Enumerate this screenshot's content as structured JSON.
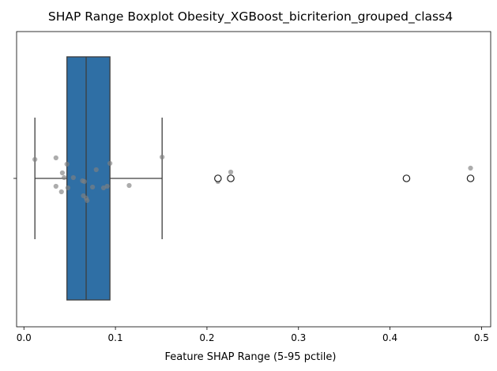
{
  "chart_data": {
    "type": "boxplot",
    "title": "SHAP Range Boxplot Obesity_XGBoost_bicriterion_grouped_class4",
    "xlabel": "Feature SHAP Range (5-95 pctile)",
    "ylabel": "",
    "orientation": "horizontal",
    "xlim": [
      -0.008,
      0.51
    ],
    "xticks": [
      0.0,
      0.1,
      0.2,
      0.3,
      0.4,
      0.5
    ],
    "xtick_labels": [
      "0.0",
      "0.1",
      "0.2",
      "0.3",
      "0.4",
      "0.5"
    ],
    "box": {
      "q1": 0.047,
      "median": 0.068,
      "q3": 0.094,
      "whisker_low": 0.012,
      "whisker_high": 0.151,
      "fill_color": "#2f6fa5",
      "edge_color": "#3d3d3d"
    },
    "outliers": [
      0.212,
      0.226,
      0.418,
      0.488
    ],
    "points": [
      {
        "x": 0.012,
        "jitter": -0.24
      },
      {
        "x": 0.035,
        "jitter": -0.26
      },
      {
        "x": 0.047,
        "jitter": -0.18
      },
      {
        "x": 0.042,
        "jitter": -0.07
      },
      {
        "x": 0.044,
        "jitter": -0.01
      },
      {
        "x": 0.054,
        "jitter": -0.01
      },
      {
        "x": 0.035,
        "jitter": 0.1
      },
      {
        "x": 0.048,
        "jitter": 0.12
      },
      {
        "x": 0.041,
        "jitter": 0.17
      },
      {
        "x": 0.064,
        "jitter": 0.03
      },
      {
        "x": 0.066,
        "jitter": 0.04
      },
      {
        "x": 0.075,
        "jitter": 0.11
      },
      {
        "x": 0.079,
        "jitter": -0.11
      },
      {
        "x": 0.094,
        "jitter": -0.19
      },
      {
        "x": 0.087,
        "jitter": 0.12
      },
      {
        "x": 0.091,
        "jitter": 0.1
      },
      {
        "x": 0.065,
        "jitter": 0.22
      },
      {
        "x": 0.068,
        "jitter": 0.25
      },
      {
        "x": 0.069,
        "jitter": 0.28
      },
      {
        "x": 0.115,
        "jitter": 0.09
      },
      {
        "x": 0.151,
        "jitter": -0.27
      },
      {
        "x": 0.212,
        "jitter": 0.04
      },
      {
        "x": 0.226,
        "jitter": -0.08
      },
      {
        "x": 0.418,
        "jitter": 0.0
      },
      {
        "x": 0.488,
        "jitter": -0.13
      }
    ],
    "point_color": "#7f7f7f",
    "grid": false,
    "legend": "none"
  }
}
